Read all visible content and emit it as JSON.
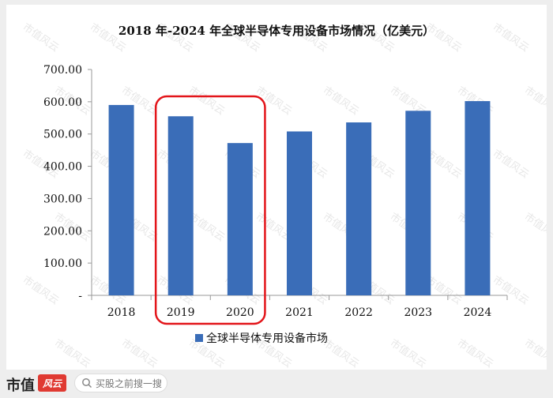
{
  "chart_data": {
    "type": "bar",
    "title": "2018 年-2024 年全球半导体专用设备市场情况（亿美元）",
    "categories": [
      "2018",
      "2019",
      "2020",
      "2021",
      "2022",
      "2023",
      "2024"
    ],
    "series": [
      {
        "name": "全球半导体专用设备市场",
        "values": [
          590,
          555,
          472,
          508,
          536,
          572,
          602
        ]
      }
    ],
    "ylim": [
      0,
      700
    ],
    "yticks": [
      "-",
      "100.00",
      "200.00",
      "300.00",
      "400.00",
      "500.00",
      "600.00",
      "700.00"
    ],
    "legend_position": "bottom",
    "grid": false,
    "bar_color": "#3a6db8",
    "highlight": {
      "categories": [
        "2019",
        "2020"
      ],
      "color": "#e3151a"
    }
  },
  "brand": {
    "name": "市值",
    "mark": "风云",
    "watermark": "市值风云"
  },
  "search": {
    "placeholder": "买股之前搜一搜"
  }
}
